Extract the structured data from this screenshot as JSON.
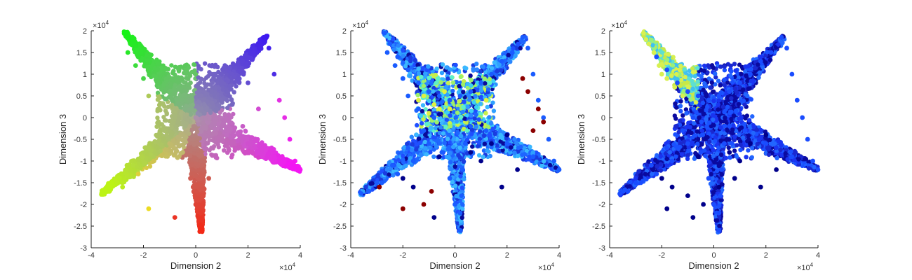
{
  "figure": {
    "panels": [
      {
        "xlabel": "Dimension 2",
        "ylabel": "Dimension 3",
        "x_exponent_label": "×10",
        "x_exponent_power": "4",
        "y_exponent_label": "×10",
        "y_exponent_power": "4"
      },
      {
        "xlabel": "Dimension 2",
        "ylabel": "Dimension 3",
        "x_exponent_label": "×10",
        "x_exponent_power": "4",
        "y_exponent_label": "×10",
        "y_exponent_power": "4"
      },
      {
        "xlabel": "Dimension 2",
        "ylabel": "Dimension 3",
        "x_exponent_label": "×10",
        "x_exponent_power": "4",
        "y_exponent_label": "×10",
        "y_exponent_power": "4"
      }
    ]
  },
  "chart_data": [
    {
      "type": "scatter",
      "title": "",
      "xlabel": "Dimension 2",
      "ylabel": "Dimension 3",
      "xlim": [
        -40000,
        40000
      ],
      "ylim": [
        -30000,
        20000
      ],
      "x_ticks": [
        -40000,
        -20000,
        0,
        20000,
        40000
      ],
      "x_tick_labels": [
        "-4",
        "-2",
        "0",
        "2",
        "4"
      ],
      "y_ticks": [
        -30000,
        -25000,
        -20000,
        -15000,
        -10000,
        -5000,
        0,
        5000,
        10000,
        15000,
        20000
      ],
      "y_tick_labels": [
        "-3",
        "-2.5",
        "-2",
        "-1.5",
        "-1",
        "-0.5",
        "0",
        "0.5",
        "1",
        "1.5",
        "2"
      ],
      "grid": false,
      "coloring": "hue by position on star arms (green upper-left, blue/purple upper-right, magenta right, yellow/orange lower-left, red bottom, grey center)",
      "series": [
        {
          "color": "#6e6e6e",
          "points": [
            [
              -27000,
              19500
            ],
            [
              -25000,
              17000
            ],
            [
              -22000,
              14000
            ],
            [
              -18000,
              11000
            ],
            [
              -14000,
              8000
            ],
            [
              -10000,
              6000
            ],
            [
              -6000,
              5000
            ],
            [
              -2000,
              4000
            ],
            [
              2000,
              5000
            ],
            [
              6000,
              6000
            ],
            [
              10000,
              8000
            ],
            [
              14000,
              10000
            ],
            [
              18000,
              13000
            ],
            [
              22000,
              15000
            ],
            [
              26000,
              18500
            ],
            [
              28000,
              16000
            ],
            [
              30000,
              10000
            ],
            [
              32000,
              4000
            ],
            [
              34000,
              0
            ],
            [
              36000,
              -5000
            ],
            [
              38000,
              -10000
            ],
            [
              40000,
              -12000
            ],
            [
              30000,
              -9000
            ],
            [
              20000,
              -6000
            ],
            [
              12000,
              -3000
            ],
            [
              6000,
              -2000
            ],
            [
              4000,
              -6000
            ],
            [
              3000,
              -12000
            ],
            [
              2500,
              -18000
            ],
            [
              2000,
              -22000
            ],
            [
              2000,
              -26000
            ],
            [
              0,
              -20000
            ],
            [
              -2000,
              -14000
            ],
            [
              -5000,
              -8000
            ],
            [
              -10000,
              -6000
            ],
            [
              -16000,
              -10000
            ],
            [
              -22000,
              -13000
            ],
            [
              -28000,
              -15000
            ],
            [
              -33000,
              -17000
            ],
            [
              -36000,
              -17500
            ],
            [
              -30000,
              -15000
            ],
            [
              -24000,
              -11000
            ],
            [
              -18000,
              -7000
            ],
            [
              -12000,
              -3000
            ],
            [
              -8000,
              0
            ],
            [
              -14000,
              2000
            ],
            [
              -18000,
              5000
            ],
            [
              -20000,
              9000
            ],
            [
              -23000,
              12000
            ],
            [
              -26000,
              15000
            ],
            [
              -8000,
              -23000
            ],
            [
              -18000,
              -21000
            ],
            [
              -28000,
              -16000
            ],
            [
              0,
              0
            ],
            [
              4000,
              2000
            ],
            [
              -4000,
              -2000
            ],
            [
              8000,
              2000
            ],
            [
              10000,
              -2000
            ],
            [
              -6000,
              3000
            ],
            [
              -2000,
              8000
            ],
            [
              6000,
              10000
            ],
            [
              14000,
              3000
            ],
            [
              18000,
              -2000
            ],
            [
              24000,
              2000
            ],
            [
              20000,
              8000
            ],
            [
              -4000,
              12000
            ],
            [
              0,
              10000
            ],
            [
              2000,
              -10000
            ],
            [
              -1000,
              -16000
            ],
            [
              5000,
              -14000
            ]
          ]
        }
      ]
    },
    {
      "type": "scatter",
      "title": "",
      "xlabel": "Dimension 2",
      "ylabel": "Dimension 3",
      "xlim": [
        -40000,
        40000
      ],
      "ylim": [
        -30000,
        20000
      ],
      "x_ticks": [
        -40000,
        -20000,
        0,
        20000,
        40000
      ],
      "x_tick_labels": [
        "-4",
        "-2",
        "0",
        "2",
        "4"
      ],
      "y_ticks": [
        -30000,
        -25000,
        -20000,
        -15000,
        -10000,
        -5000,
        0,
        5000,
        10000,
        15000,
        20000
      ],
      "y_tick_labels": [
        "-3",
        "-2.5",
        "-2",
        "-1.5",
        "-1",
        "-0.5",
        "0",
        "0.5",
        "1",
        "1.5",
        "2"
      ],
      "grid": false,
      "coloring": "jet colormap; mostly blue, cyan/yellow in upper-left center, dark red outliers",
      "series": [
        {
          "color": "#1a5cff",
          "points": [
            [
              -27000,
              19500
            ],
            [
              -25000,
              17000
            ],
            [
              -22000,
              14000
            ],
            [
              -18000,
              11000
            ],
            [
              -14000,
              8000
            ],
            [
              -10000,
              6000
            ],
            [
              -6000,
              5000
            ],
            [
              -2000,
              4000
            ],
            [
              2000,
              5000
            ],
            [
              6000,
              6000
            ],
            [
              10000,
              8000
            ],
            [
              14000,
              10000
            ],
            [
              18000,
              13000
            ],
            [
              22000,
              15000
            ],
            [
              26000,
              18500
            ],
            [
              28000,
              16000
            ],
            [
              30000,
              10000
            ],
            [
              32000,
              4000
            ],
            [
              34000,
              0
            ],
            [
              36000,
              -5000
            ],
            [
              38000,
              -10000
            ],
            [
              40000,
              -12000
            ],
            [
              30000,
              -9000
            ],
            [
              20000,
              -6000
            ],
            [
              12000,
              -3000
            ],
            [
              6000,
              -2000
            ],
            [
              4000,
              -6000
            ],
            [
              3000,
              -12000
            ],
            [
              2500,
              -18000
            ],
            [
              2000,
              -22000
            ],
            [
              2000,
              -26000
            ],
            [
              0,
              -20000
            ],
            [
              -2000,
              -14000
            ],
            [
              -5000,
              -8000
            ],
            [
              -10000,
              -6000
            ],
            [
              -16000,
              -10000
            ],
            [
              -22000,
              -13000
            ],
            [
              -28000,
              -15000
            ],
            [
              -33000,
              -17000
            ],
            [
              -36000,
              -17500
            ],
            [
              -30000,
              -15000
            ],
            [
              -24000,
              -11000
            ],
            [
              -18000,
              -7000
            ],
            [
              -12000,
              -3000
            ],
            [
              -8000,
              0
            ],
            [
              -14000,
              2000
            ],
            [
              -18000,
              5000
            ],
            [
              -20000,
              9000
            ],
            [
              -23000,
              12000
            ],
            [
              -26000,
              15000
            ]
          ]
        },
        {
          "color": "#e0f040",
          "points": [
            [
              -12000,
              5000
            ],
            [
              -8000,
              3000
            ],
            [
              -10000,
              1000
            ],
            [
              -4000,
              6000
            ],
            [
              -6000,
              2000
            ],
            [
              -14000,
              4000
            ],
            [
              -2000,
              2000
            ],
            [
              12000,
              4000
            ]
          ]
        },
        {
          "color": "#8b0000",
          "points": [
            [
              -29000,
              -16000
            ],
            [
              -20000,
              -21000
            ],
            [
              -12000,
              -20000
            ],
            [
              -9000,
              -17000
            ],
            [
              32000,
              2000
            ],
            [
              34000,
              -1000
            ],
            [
              28000,
              6000
            ],
            [
              26000,
              9000
            ],
            [
              30000,
              -3000
            ]
          ]
        },
        {
          "color": "#00008b",
          "points": [
            [
              -8000,
              -23000
            ],
            [
              -6000,
              -9000
            ],
            [
              6000,
              -8000
            ],
            [
              10000,
              -10000
            ],
            [
              14000,
              -6000
            ],
            [
              20000,
              -4000
            ],
            [
              24000,
              -12000
            ],
            [
              18000,
              -16000
            ],
            [
              -20000,
              -14000
            ],
            [
              -16000,
              -16000
            ]
          ]
        }
      ]
    },
    {
      "type": "scatter",
      "title": "",
      "xlabel": "Dimension 2",
      "ylabel": "Dimension 3",
      "xlim": [
        -40000,
        40000
      ],
      "ylim": [
        -30000,
        20000
      ],
      "x_ticks": [
        -40000,
        -20000,
        0,
        20000,
        40000
      ],
      "x_tick_labels": [
        "-4",
        "-2",
        "0",
        "2",
        "4"
      ],
      "y_ticks": [
        -30000,
        -25000,
        -20000,
        -15000,
        -10000,
        -5000,
        0,
        5000,
        10000,
        15000,
        20000
      ],
      "y_tick_labels": [
        "-3",
        "-2.5",
        "-2",
        "-1.5",
        "-1",
        "-0.5",
        "0",
        "0.5",
        "1",
        "1.5",
        "2"
      ],
      "grid": false,
      "coloring": "jet colormap; mostly blue/dark blue, yellow-green along upper-left arm",
      "series": [
        {
          "color": "#1a4cff",
          "points": [
            [
              -22000,
              14000
            ],
            [
              -18000,
              11000
            ],
            [
              -14000,
              8000
            ],
            [
              -10000,
              6000
            ],
            [
              -6000,
              5000
            ],
            [
              -2000,
              4000
            ],
            [
              2000,
              5000
            ],
            [
              6000,
              6000
            ],
            [
              10000,
              8000
            ],
            [
              14000,
              10000
            ],
            [
              18000,
              13000
            ],
            [
              22000,
              15000
            ],
            [
              26000,
              18500
            ],
            [
              28000,
              16000
            ],
            [
              30000,
              10000
            ],
            [
              32000,
              4000
            ],
            [
              34000,
              0
            ],
            [
              36000,
              -5000
            ],
            [
              38000,
              -10000
            ],
            [
              40000,
              -12000
            ],
            [
              30000,
              -9000
            ],
            [
              20000,
              -6000
            ],
            [
              12000,
              -3000
            ],
            [
              6000,
              -2000
            ],
            [
              4000,
              -6000
            ],
            [
              3000,
              -12000
            ],
            [
              2500,
              -18000
            ],
            [
              2000,
              -22000
            ],
            [
              2000,
              -26000
            ],
            [
              0,
              -20000
            ],
            [
              -2000,
              -14000
            ],
            [
              -5000,
              -8000
            ],
            [
              -10000,
              -6000
            ],
            [
              -16000,
              -10000
            ],
            [
              -22000,
              -13000
            ],
            [
              -28000,
              -15000
            ],
            [
              -33000,
              -17000
            ],
            [
              -36000,
              -17500
            ],
            [
              -30000,
              -15000
            ],
            [
              -24000,
              -11000
            ],
            [
              -18000,
              -7000
            ],
            [
              -12000,
              -3000
            ],
            [
              -8000,
              0
            ]
          ]
        },
        {
          "color": "#d8f050",
          "points": [
            [
              -27000,
              19500
            ],
            [
              -25000,
              17000
            ],
            [
              -23000,
              15000
            ],
            [
              -21000,
              12000
            ],
            [
              -18000,
              9000
            ],
            [
              -15000,
              7000
            ],
            [
              -12000,
              5000
            ],
            [
              -26000,
              18000
            ],
            [
              -20000,
              10000
            ]
          ]
        },
        {
          "color": "#00008b",
          "points": [
            [
              -8000,
              -23000
            ],
            [
              -6000,
              -9000
            ],
            [
              6000,
              -8000
            ],
            [
              10000,
              -10000
            ],
            [
              14000,
              -6000
            ],
            [
              20000,
              -4000
            ],
            [
              24000,
              -12000
            ],
            [
              18000,
              -16000
            ],
            [
              -20000,
              -14000
            ],
            [
              -16000,
              -16000
            ],
            [
              -18000,
              -21000
            ],
            [
              -10000,
              -18000
            ],
            [
              -4000,
              -20000
            ],
            [
              2000,
              -16000
            ],
            [
              8000,
              -14000
            ]
          ]
        }
      ]
    }
  ]
}
